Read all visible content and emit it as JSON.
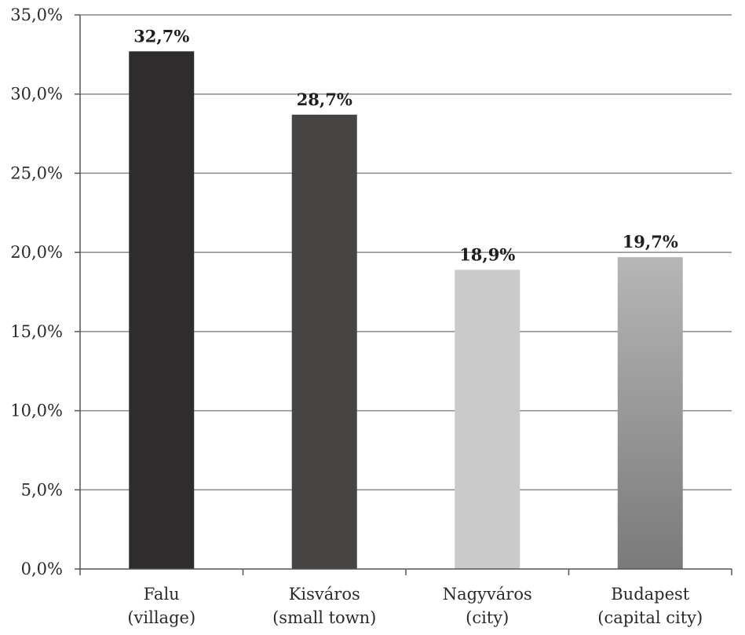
{
  "chart_data": {
    "type": "bar",
    "title": "",
    "xlabel": "",
    "ylabel": "",
    "categories": [
      [
        "Falu",
        "(village)"
      ],
      [
        "Kisváros",
        "(small town)"
      ],
      [
        "Nagyváros",
        "(city)"
      ],
      [
        "Budapest",
        "(capital city)"
      ]
    ],
    "values": [
      32.7,
      28.7,
      18.9,
      19.7
    ],
    "data_labels": [
      "32,7%",
      "28,7%",
      "18,9%",
      "19,7%"
    ],
    "ylim": [
      0,
      35
    ],
    "yticks": [
      0,
      5,
      10,
      15,
      20,
      25,
      30,
      35
    ],
    "ytick_labels": [
      "0,0%",
      "5,0%",
      "10,0%",
      "15,0%",
      "20,0%",
      "25,0%",
      "30,0%",
      "35,0%"
    ],
    "grid": true,
    "legend": "none",
    "colors": {
      "bars": [
        "#2f2c2d",
        "#464544",
        "#cacaca",
        "gradient"
      ],
      "gradient_top": "#b6b6b6",
      "gradient_bottom": "#7a7a7a",
      "grid": "#8a8a8a",
      "axis": "#555555"
    }
  }
}
